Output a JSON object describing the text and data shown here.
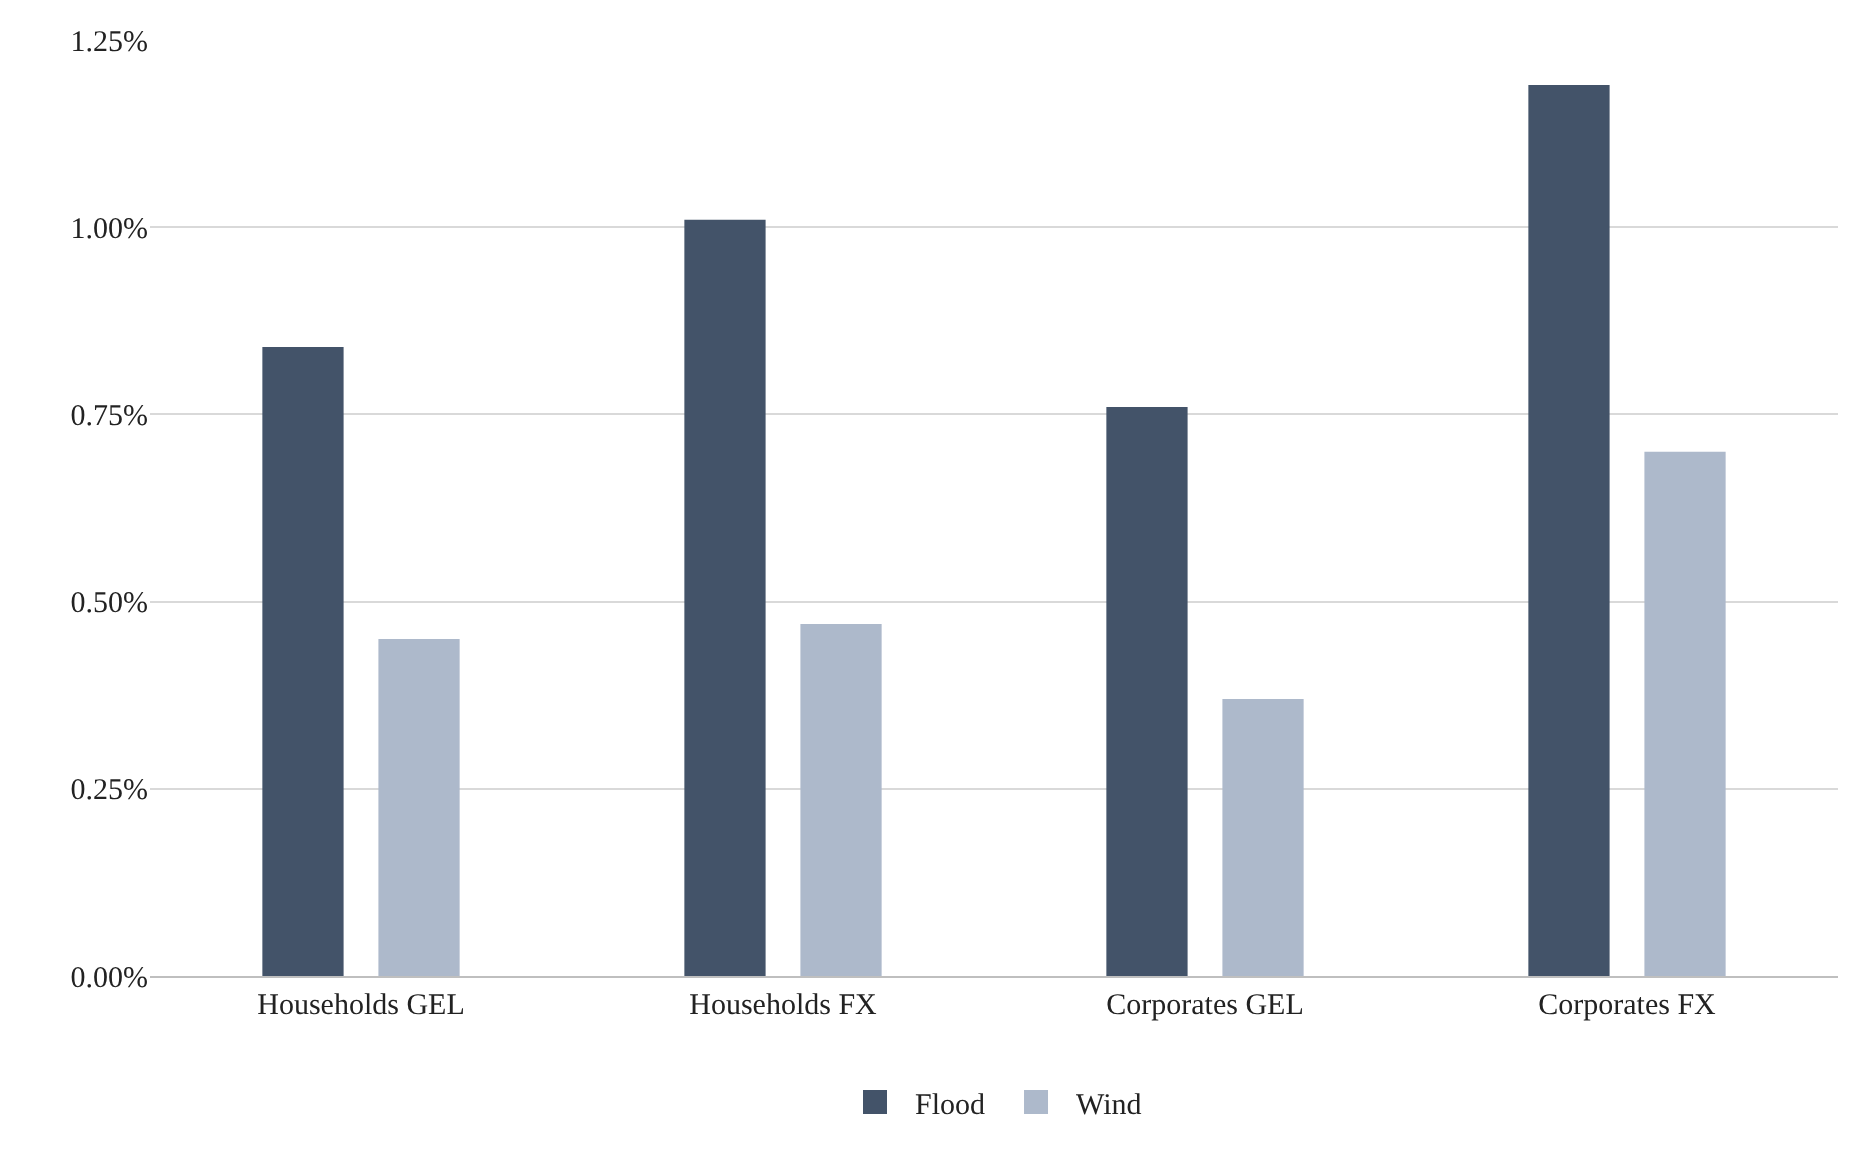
{
  "chart_data": {
    "type": "bar",
    "categories": [
      "Households GEL",
      "Households FX",
      "Corporates GEL",
      "Corporates FX"
    ],
    "series": [
      {
        "name": "Flood",
        "color": "#435369",
        "values": [
          0.84,
          1.01,
          0.76,
          1.19
        ]
      },
      {
        "name": "Wind",
        "color": "#adb9cb",
        "values": [
          0.45,
          0.47,
          0.37,
          0.7
        ]
      }
    ],
    "ylim": [
      0,
      1.25
    ],
    "yticks": [
      {
        "value": 0,
        "label": "0.00%"
      },
      {
        "value": 0.25,
        "label": "0.25%"
      },
      {
        "value": 0.5,
        "label": "0.50%"
      },
      {
        "value": 0.75,
        "label": "0.75%"
      },
      {
        "value": 1.0,
        "label": "1.00%"
      },
      {
        "value": 1.25,
        "label": "1.25%"
      }
    ],
    "grid": "y",
    "legend": "bottom"
  }
}
